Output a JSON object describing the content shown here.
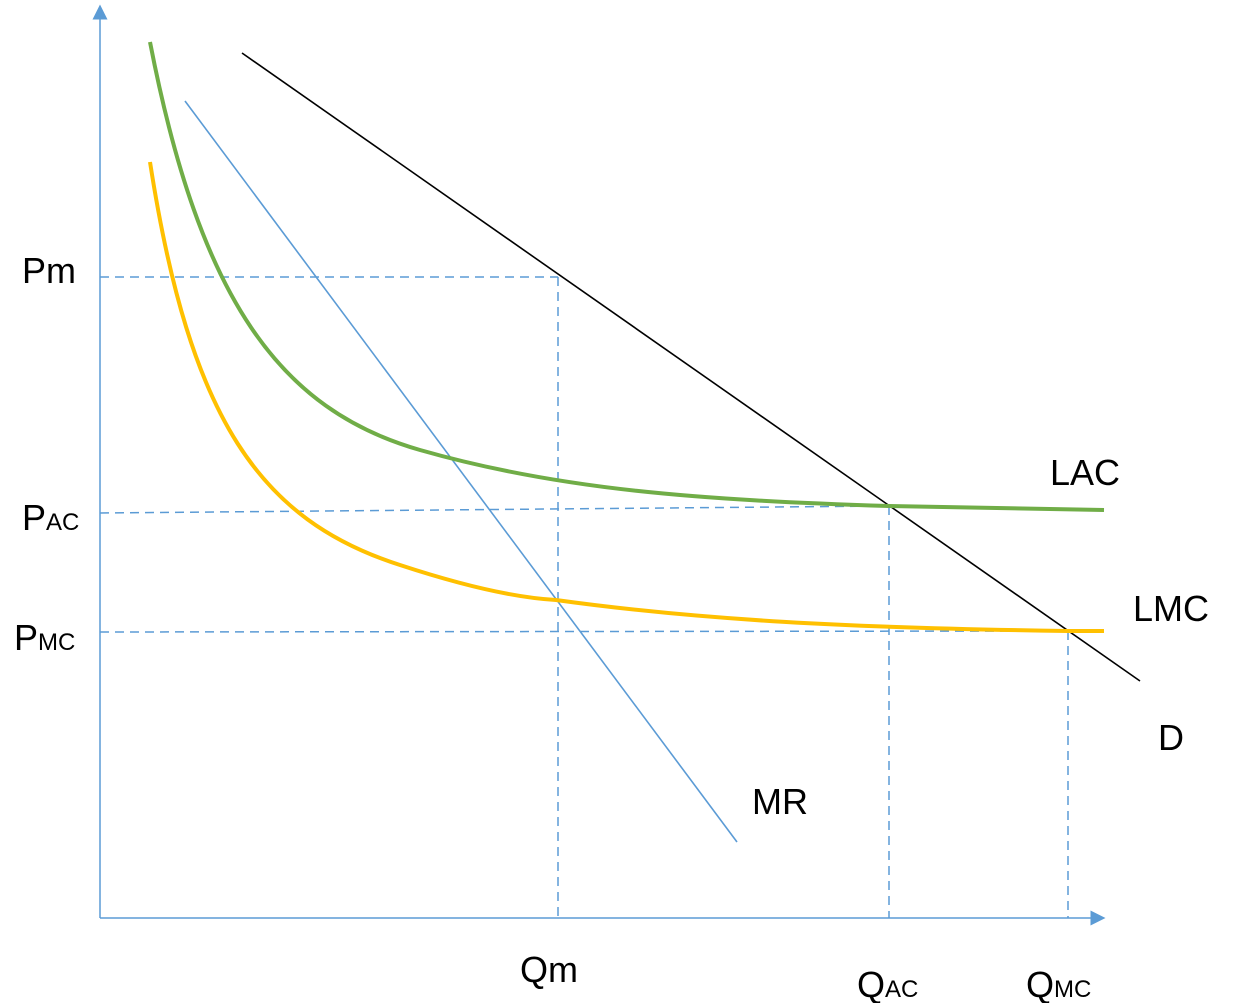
{
  "axes": {
    "y_ticks": {
      "pm": "Pm",
      "pac": {
        "main": "P",
        "sub": "AC"
      },
      "pmc": {
        "main": "P",
        "sub": "MC"
      }
    },
    "x_ticks": {
      "qm": "Qm",
      "qac": {
        "main": "Q",
        "sub": "AC"
      },
      "qmc": {
        "main": "Q",
        "sub": "MC"
      }
    }
  },
  "curves": {
    "lac": {
      "label": "LAC",
      "color": "#70ad47"
    },
    "lmc": {
      "label": "LMC",
      "color": "#ffc000"
    },
    "demand": {
      "label": "D",
      "color": "#000000"
    },
    "mr": {
      "label": "MR",
      "color": "#5b9bd5"
    }
  },
  "guide_color": "#5b9bd5"
}
